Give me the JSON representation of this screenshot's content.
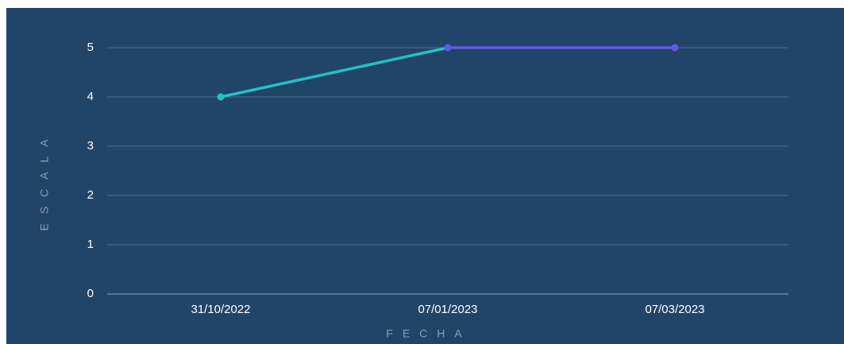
{
  "chart_data": {
    "type": "line",
    "xlabel": "FECHA",
    "ylabel": "ESCALA",
    "categories": [
      "31/10/2022",
      "07/01/2023",
      "07/03/2023"
    ],
    "series": [
      {
        "values": [
          4,
          5,
          5
        ],
        "point_colors": [
          "#20c2c6",
          "#5b5be3",
          "#5b5be3"
        ]
      }
    ],
    "ylim": [
      0,
      5
    ],
    "yticks": [
      0,
      1,
      2,
      3,
      4,
      5
    ],
    "grid": true
  }
}
